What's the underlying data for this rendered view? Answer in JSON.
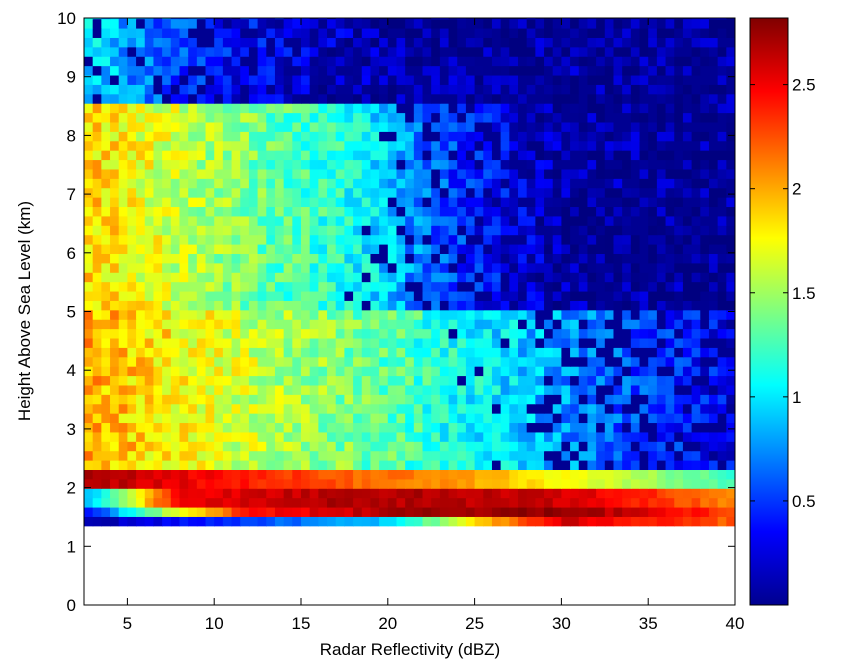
{
  "chart_data": {
    "type": "heatmap",
    "title": "",
    "xlabel": "Radar Reflectivity (dBZ)",
    "ylabel": "Height Above Sea Level (km)",
    "xlim": [
      2.5,
      40
    ],
    "ylim": [
      0,
      10
    ],
    "x_ticks": [
      5,
      10,
      15,
      20,
      25,
      30,
      35,
      40
    ],
    "y_ticks": [
      0,
      1,
      2,
      3,
      4,
      5,
      6,
      7,
      8,
      9,
      10
    ],
    "colorbar": {
      "colormap": "jet",
      "clim": [
        0,
        2.82
      ],
      "ticks": [
        0.5,
        1,
        1.5,
        2,
        2.5
      ]
    },
    "data_extent": {
      "x": [
        2.5,
        40
      ],
      "y": [
        1.35,
        10
      ]
    },
    "value_estimate": {
      "note": "Cell values estimated from colors: high (~1.8-2.1) at low dBZ, decreasing with reflectivity and height; strong band (~2.5-2.8) near 1.5-2 km.",
      "levels": [
        {
          "y": [
            1.35,
            1.5
          ],
          "value_at": [
            [
              2.5,
              0.1
            ],
            [
              20,
              0.9
            ],
            [
              26,
              2.0
            ],
            [
              30,
              2.6
            ],
            [
              40,
              2.2
            ]
          ]
        },
        {
          "y": [
            1.5,
            1.75
          ],
          "value_at": [
            [
              2.5,
              0.3
            ],
            [
              6,
              1.3
            ],
            [
              12,
              2.4
            ],
            [
              20,
              2.7
            ],
            [
              30,
              2.8
            ],
            [
              40,
              2.3
            ]
          ]
        },
        {
          "y": [
            1.75,
            1.95
          ],
          "value_at": [
            [
              2.5,
              0.8
            ],
            [
              8,
              2.5
            ],
            [
              18,
              2.7
            ],
            [
              30,
              2.6
            ],
            [
              40,
              2.1
            ]
          ]
        },
        {
          "y": [
            1.95,
            2.3
          ],
          "value_at": [
            [
              2.5,
              2.7
            ],
            [
              15,
              2.3
            ],
            [
              25,
              2.0
            ],
            [
              35,
              1.5
            ],
            [
              40,
              1.2
            ]
          ]
        },
        {
          "y": [
            2.3,
            5.0
          ],
          "value_at": [
            [
              2.5,
              2.0
            ],
            [
              10,
              1.7
            ],
            [
              20,
              1.3
            ],
            [
              28,
              0.9
            ],
            [
              35,
              0.5
            ],
            [
              40,
              0.3
            ]
          ]
        },
        {
          "y": [
            5.0,
            8.6
          ],
          "value_at": [
            [
              2.5,
              1.9
            ],
            [
              10,
              1.5
            ],
            [
              18,
              1.1
            ],
            [
              24,
              0.5
            ],
            [
              30,
              0.1
            ],
            [
              40,
              0.05
            ]
          ]
        },
        {
          "y": [
            8.6,
            10.0
          ],
          "value_at": [
            [
              2.5,
              1.0
            ],
            [
              6,
              0.7
            ],
            [
              10,
              0.4
            ],
            [
              20,
              0.1
            ],
            [
              40,
              0.05
            ]
          ]
        }
      ]
    }
  }
}
